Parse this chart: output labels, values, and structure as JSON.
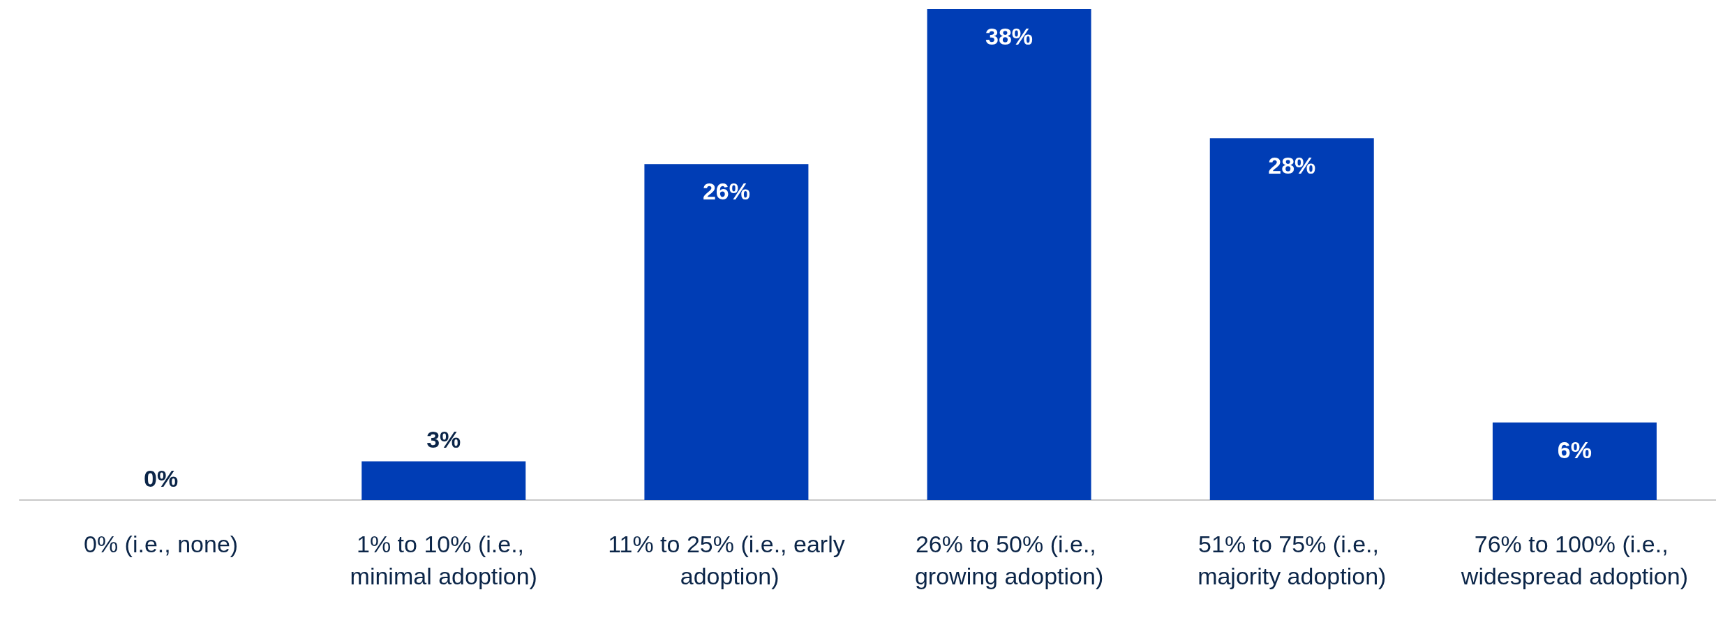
{
  "chart_data": {
    "type": "bar",
    "categories": [
      "0% (i.e., none)",
      "1% to 10% (i.e., minimal adoption)",
      "11% to 25% (i.e., early adoption)",
      "26% to 50% (i.e., growing adoption)",
      "51% to 75% (i.e., majority adoption)",
      "76% to 100% (i.e., widespread adoption)"
    ],
    "values": [
      0,
      3,
      26,
      38,
      28,
      6
    ],
    "value_labels": [
      "0%",
      "3%",
      "26%",
      "38%",
      "28%",
      "6%"
    ],
    "color": "#003db5"
  }
}
